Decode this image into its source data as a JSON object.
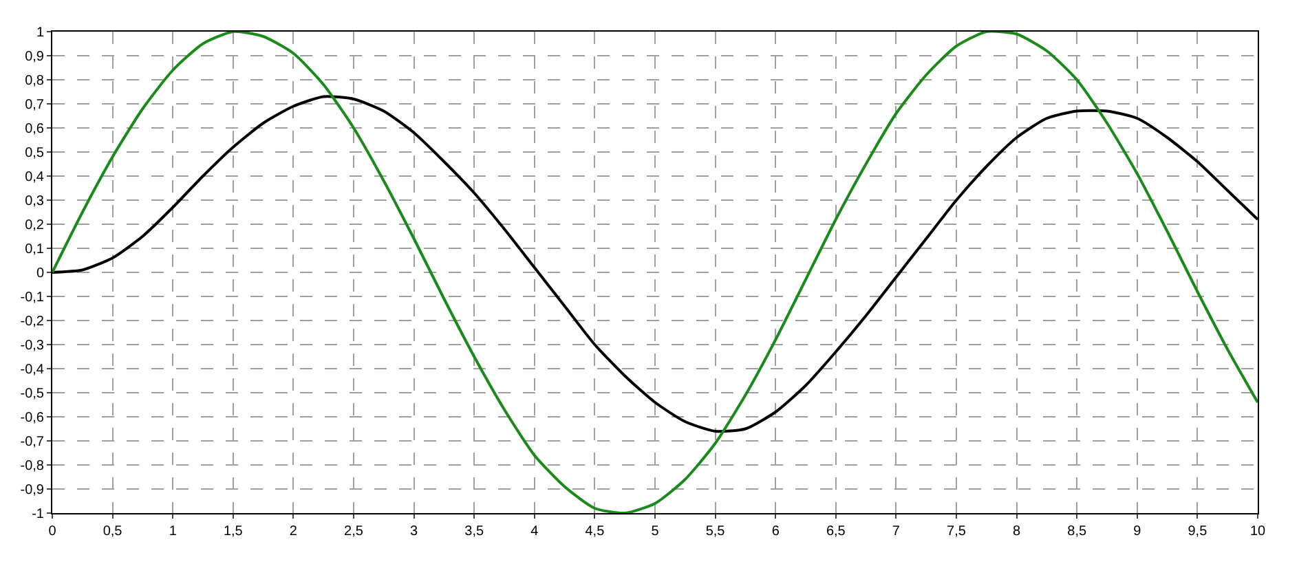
{
  "chart_data": {
    "type": "line",
    "x": [
      0,
      0.25,
      0.5,
      0.75,
      1,
      1.25,
      1.5,
      1.75,
      2,
      2.25,
      2.5,
      2.75,
      3,
      3.25,
      3.5,
      3.75,
      4,
      4.25,
      4.5,
      4.75,
      5,
      5.25,
      5.5,
      5.75,
      6,
      6.25,
      6.5,
      6.75,
      7,
      7.25,
      7.5,
      7.75,
      8,
      8.25,
      8.5,
      8.75,
      9,
      9.25,
      9.5,
      9.75,
      10
    ],
    "series": [
      {
        "color": "#000000",
        "values": [
          0,
          0.01,
          0.06,
          0.15,
          0.27,
          0.4,
          0.52,
          0.62,
          0.69,
          0.73,
          0.72,
          0.67,
          0.58,
          0.46,
          0.33,
          0.18,
          0.02,
          -0.14,
          -0.3,
          -0.43,
          -0.54,
          -0.62,
          -0.66,
          -0.65,
          -0.58,
          -0.47,
          -0.33,
          -0.18,
          -0.02,
          0.14,
          0.3,
          0.44,
          0.56,
          0.64,
          0.67,
          0.67,
          0.64,
          0.56,
          0.46,
          0.34,
          0.22
        ]
      },
      {
        "color": "#1a8a1a",
        "values": [
          0,
          0.25,
          0.48,
          0.68,
          0.84,
          0.95,
          1,
          0.98,
          0.91,
          0.78,
          0.6,
          0.38,
          0.14,
          -0.11,
          -0.35,
          -0.57,
          -0.76,
          -0.89,
          -0.98,
          -1,
          -0.96,
          -0.86,
          -0.71,
          -0.51,
          -0.28,
          -0.03,
          0.22,
          0.45,
          0.66,
          0.82,
          0.94,
          1,
          0.99,
          0.92,
          0.8,
          0.62,
          0.41,
          0.17,
          -0.08,
          -0.32,
          -0.54
        ]
      }
    ],
    "xlim": [
      0,
      10
    ],
    "xticks": [
      0,
      {
        "value": 0.5,
        "label": "0,5"
      },
      1,
      {
        "value": 1.5,
        "label": "1,5"
      },
      2,
      {
        "value": 2.5,
        "label": "2,5"
      },
      3,
      {
        "value": 3.5,
        "label": "3,5"
      },
      4,
      {
        "value": 4.5,
        "label": "4,5"
      },
      5,
      {
        "value": 5.5,
        "label": "5,5"
      },
      6,
      {
        "value": 6.5,
        "label": "6,5"
      },
      7,
      {
        "value": 7.5,
        "label": "7,5"
      },
      8,
      {
        "value": 8.5,
        "label": "8,5"
      },
      9,
      {
        "value": 9.5,
        "label": "9,5"
      },
      10
    ],
    "ylim": [
      -1,
      1
    ],
    "yticks": [
      -1,
      {
        "value": -0.9,
        "label": "-0,9"
      },
      {
        "value": -0.8,
        "label": "-0,8"
      },
      {
        "value": -0.7,
        "label": "-0,7"
      },
      {
        "value": -0.6,
        "label": "-0,6"
      },
      {
        "value": -0.5,
        "label": "-0,5"
      },
      {
        "value": -0.4,
        "label": "-0,4"
      },
      {
        "value": -0.3,
        "label": "-0,3"
      },
      {
        "value": -0.2,
        "label": "-0,2"
      },
      {
        "value": -0.1,
        "label": "-0,1"
      },
      0,
      {
        "value": 0.1,
        "label": "0,1"
      },
      {
        "value": 0.2,
        "label": "0,2"
      },
      {
        "value": 0.3,
        "label": "0,3"
      },
      {
        "value": 0.4,
        "label": "0,4"
      },
      {
        "value": 0.5,
        "label": "0,5"
      },
      {
        "value": 0.6,
        "label": "0,6"
      },
      {
        "value": 0.7,
        "label": "0,7"
      },
      {
        "value": 0.8,
        "label": "0,8"
      },
      {
        "value": 0.9,
        "label": "0,9"
      },
      1
    ],
    "grid": true,
    "legend": false,
    "line_style": "solid",
    "marker": "none"
  }
}
